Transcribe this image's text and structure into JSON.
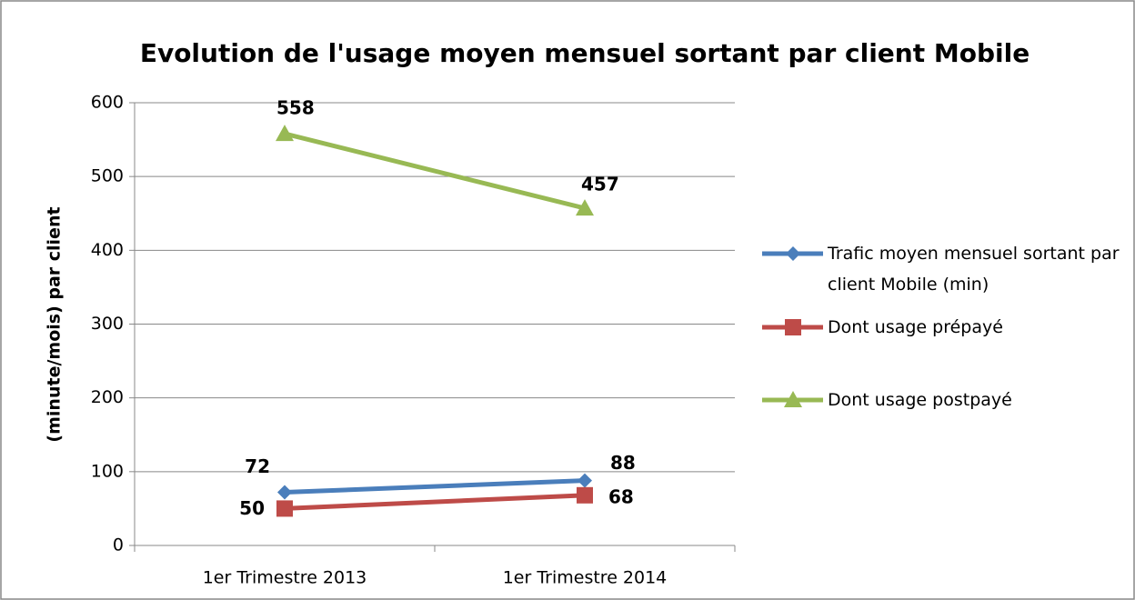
{
  "chart_data": {
    "type": "line",
    "title": "Evolution de l'usage moyen mensuel sortant par client Mobile",
    "y_label": "(minute/mois) par client",
    "categories": [
      "1er Trimestre 2013",
      "1er Trimestre 2014"
    ],
    "series": [
      {
        "name": "Trafic moyen mensuel sortant par client Mobile (min)",
        "color": "#4a7ebb",
        "marker": "diamond",
        "values": [
          72,
          88
        ]
      },
      {
        "name": "Dont usage prépayé",
        "color": "#be4b48",
        "marker": "square",
        "values": [
          50,
          68
        ]
      },
      {
        "name": "Dont usage postpayé",
        "color": "#98b954",
        "marker": "triangle",
        "values": [
          558,
          457
        ]
      }
    ],
    "ylim": [
      0,
      600
    ],
    "yticks": [
      0,
      100,
      200,
      300,
      400,
      500,
      600
    ],
    "grid": true,
    "legend": "right",
    "data_labels": true
  }
}
